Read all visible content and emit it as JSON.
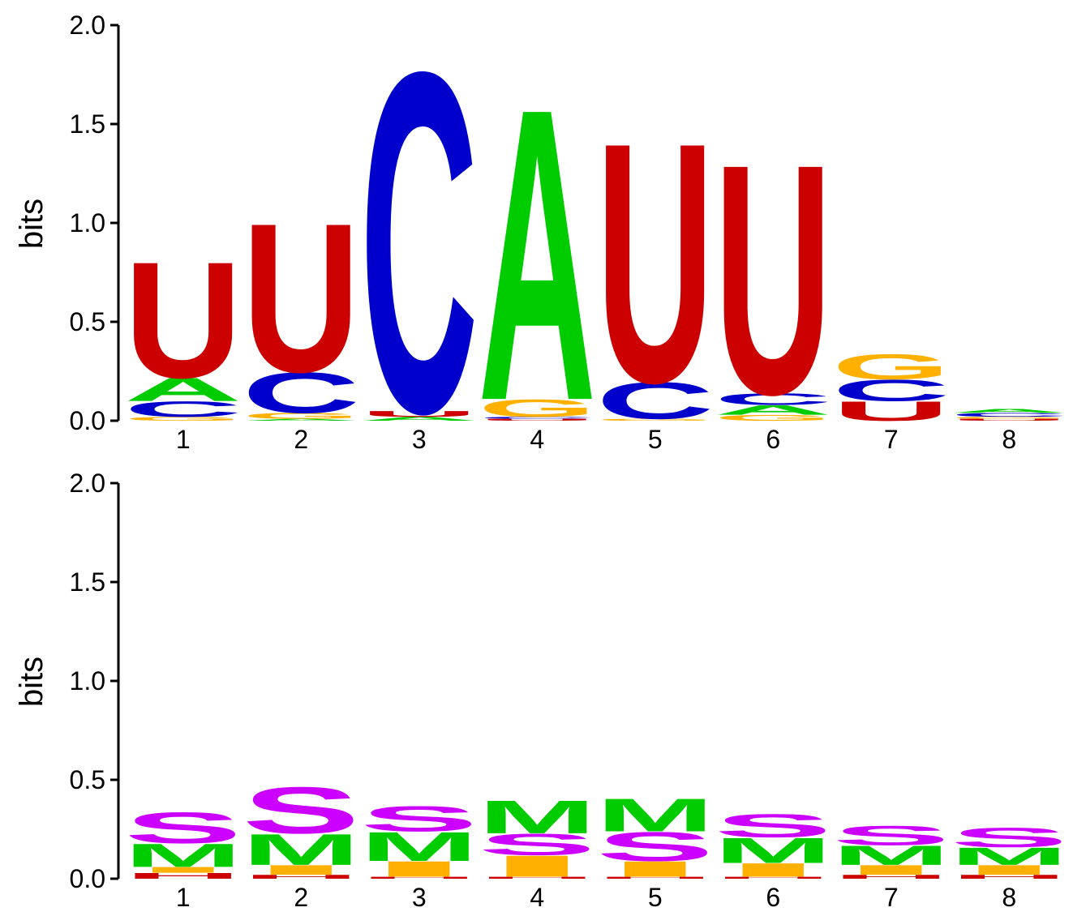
{
  "colors": {
    "A": "#00cc00",
    "C": "#0000cc",
    "G": "#ffb000",
    "U": "#cc0000",
    "M": "#00cc00",
    "S": "#cc00ff",
    "I": "#ffb000",
    "H": "#cc0000"
  },
  "chart_data": [
    {
      "type": "sequence-logo",
      "title": "",
      "xlabel": "",
      "ylabel": "bits",
      "ylim": [
        0,
        2.0
      ],
      "yticks": [
        "0.0",
        "0.5",
        "1.0",
        "1.5",
        "2.0"
      ],
      "positions": [
        "1",
        "2",
        "3",
        "4",
        "5",
        "6",
        "7",
        "8"
      ],
      "stacks": [
        [
          {
            "letter": "G",
            "bits": 0.02
          },
          {
            "letter": "C",
            "bits": 0.08
          },
          {
            "letter": "A",
            "bits": 0.12
          },
          {
            "letter": "U",
            "bits": 0.6
          }
        ],
        [
          {
            "letter": "A",
            "bits": 0.01
          },
          {
            "letter": "G",
            "bits": 0.03
          },
          {
            "letter": "C",
            "bits": 0.21
          },
          {
            "letter": "U",
            "bits": 0.77
          }
        ],
        [
          {
            "letter": "A",
            "bits": 0.02
          },
          {
            "letter": "U",
            "bits": 0.03
          },
          {
            "letter": "C",
            "bits": 1.76
          }
        ],
        [
          {
            "letter": "U",
            "bits": 0.01
          },
          {
            "letter": "C",
            "bits": 0.01
          },
          {
            "letter": "G",
            "bits": 0.09
          },
          {
            "letter": "A",
            "bits": 1.51
          }
        ],
        [
          {
            "letter": "G",
            "bits": 0.01
          },
          {
            "letter": "C",
            "bits": 0.19
          },
          {
            "letter": "U",
            "bits": 1.24
          }
        ],
        [
          {
            "letter": "G",
            "bits": 0.03
          },
          {
            "letter": "A",
            "bits": 0.05
          },
          {
            "letter": "C",
            "bits": 0.06
          },
          {
            "letter": "U",
            "bits": 1.19
          }
        ],
        [
          {
            "letter": "U",
            "bits": 0.1
          },
          {
            "letter": "C",
            "bits": 0.11
          },
          {
            "letter": "G",
            "bits": 0.13
          }
        ],
        [
          {
            "letter": "U",
            "bits": 0.01
          },
          {
            "letter": "G",
            "bits": 0.01
          },
          {
            "letter": "C",
            "bits": 0.02
          },
          {
            "letter": "A",
            "bits": 0.02
          }
        ]
      ]
    },
    {
      "type": "sequence-logo",
      "title": "",
      "xlabel": "",
      "ylabel": "bits",
      "ylim": [
        0,
        2.0
      ],
      "yticks": [
        "0.0",
        "0.5",
        "1.0",
        "1.5",
        "2.0"
      ],
      "positions": [
        "1",
        "2",
        "3",
        "4",
        "5",
        "6",
        "7",
        "8"
      ],
      "stacks": [
        [
          {
            "letter": "H",
            "bits": 0.03
          },
          {
            "letter": "I",
            "bits": 0.03
          },
          {
            "letter": "M",
            "bits": 0.12
          },
          {
            "letter": "S",
            "bits": 0.16
          }
        ],
        [
          {
            "letter": "H",
            "bits": 0.02
          },
          {
            "letter": "I",
            "bits": 0.05
          },
          {
            "letter": "M",
            "bits": 0.16
          },
          {
            "letter": "S",
            "bits": 0.24
          }
        ],
        [
          {
            "letter": "H",
            "bits": 0.01
          },
          {
            "letter": "I",
            "bits": 0.08
          },
          {
            "letter": "M",
            "bits": 0.15
          },
          {
            "letter": "S",
            "bits": 0.13
          }
        ],
        [
          {
            "letter": "H",
            "bits": 0.01
          },
          {
            "letter": "I",
            "bits": 0.11
          },
          {
            "letter": "S",
            "bits": 0.11
          },
          {
            "letter": "M",
            "bits": 0.17
          }
        ],
        [
          {
            "letter": "H",
            "bits": 0.01
          },
          {
            "letter": "I",
            "bits": 0.08
          },
          {
            "letter": "S",
            "bits": 0.15
          },
          {
            "letter": "M",
            "bits": 0.17
          }
        ],
        [
          {
            "letter": "H",
            "bits": 0.01
          },
          {
            "letter": "I",
            "bits": 0.07
          },
          {
            "letter": "M",
            "bits": 0.13
          },
          {
            "letter": "S",
            "bits": 0.12
          }
        ],
        [
          {
            "letter": "H",
            "bits": 0.02
          },
          {
            "letter": "I",
            "bits": 0.05
          },
          {
            "letter": "M",
            "bits": 0.1
          },
          {
            "letter": "S",
            "bits": 0.1
          }
        ],
        [
          {
            "letter": "H",
            "bits": 0.02
          },
          {
            "letter": "I",
            "bits": 0.05
          },
          {
            "letter": "M",
            "bits": 0.09
          },
          {
            "letter": "S",
            "bits": 0.1
          }
        ]
      ]
    }
  ]
}
